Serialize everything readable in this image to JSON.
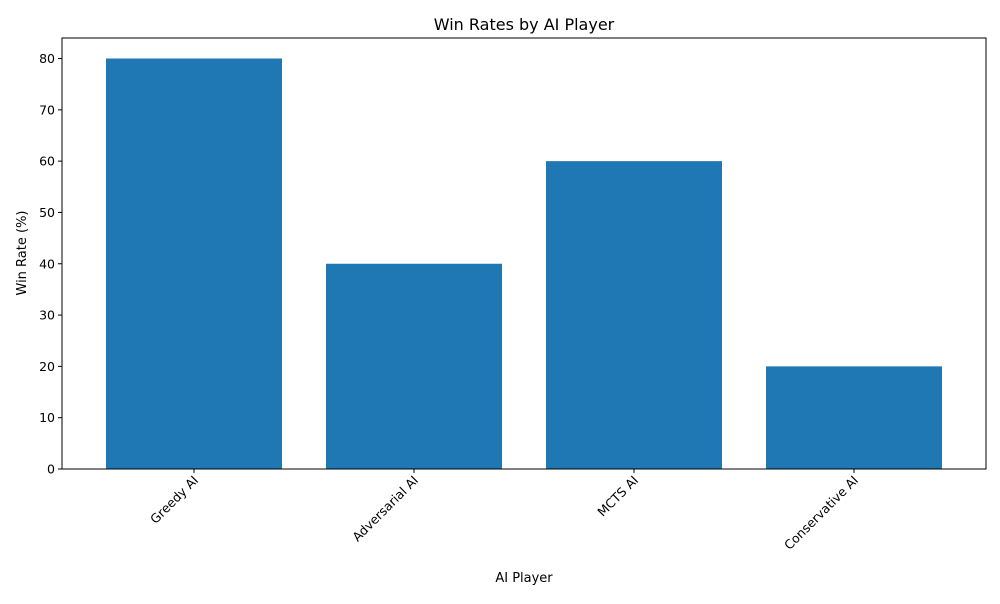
{
  "colors": {
    "bar": "#1f77b4",
    "axis": "#000000",
    "background": "#ffffff"
  },
  "chart_data": {
    "type": "bar",
    "title": "Win Rates by AI Player",
    "xlabel": "AI Player",
    "ylabel": "Win Rate (%)",
    "categories": [
      "Greedy AI",
      "Adversarial AI",
      "MCTS AI",
      "Conservative AI"
    ],
    "values": [
      80,
      40,
      60,
      20
    ],
    "ylim": [
      0,
      84
    ],
    "yticks": [
      0,
      10,
      20,
      30,
      40,
      50,
      60,
      70,
      80
    ],
    "grid": false,
    "x_tick_rotation_deg": 45
  }
}
